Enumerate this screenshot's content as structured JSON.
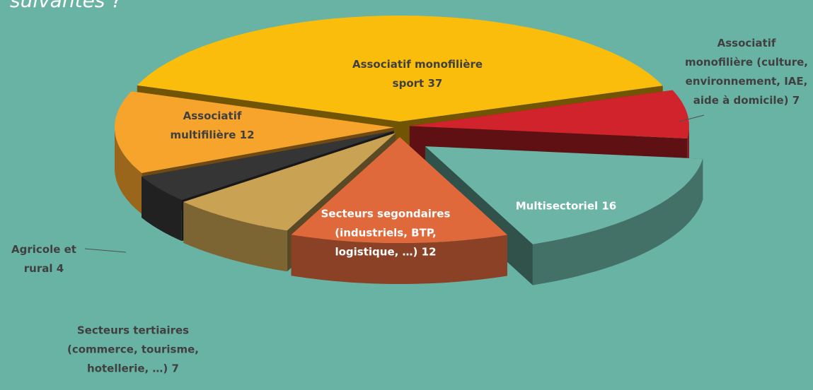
{
  "chart_data": {
    "type": "pie",
    "title": "suivantes ?",
    "categories": [
      "Associatif monofilière sport",
      "Associatif monofilière (culture, environnement, IAE, aide à domicile)",
      "Multisectoriel",
      "Secteurs segondaires (industriels, BTP, logistique, …)",
      "Secteurs tertiaires (commerce, tourisme, hotellerie, …)",
      "Agricole et rural",
      "Associatif multifilière"
    ],
    "values": [
      37,
      7,
      16,
      12,
      7,
      4,
      12
    ],
    "colors": [
      "#fbbd0b",
      "#d1232b",
      "#6cb5a6",
      "#e0693c",
      "#c9a253",
      "#353535",
      "#f6a42b"
    ]
  }
}
